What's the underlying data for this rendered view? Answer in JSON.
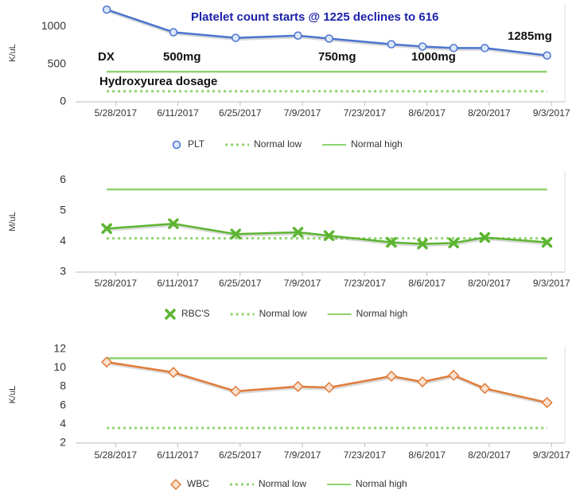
{
  "chart_data": [
    {
      "type": "line",
      "y_label": "K/uL",
      "x": [
        "2017-05-26",
        "2017-06-10",
        "2017-06-24",
        "2017-07-08",
        "2017-07-15",
        "2017-07-29",
        "2017-08-05",
        "2017-08-12",
        "2017-08-19",
        "2017-09-02"
      ],
      "xlim": [
        "2017-05-19",
        "2017-09-06"
      ],
      "xticks": [
        {
          "value": "2017-05-28",
          "label": "5/28/2017"
        },
        {
          "value": "2017-06-11",
          "label": "6/11/2017"
        },
        {
          "value": "2017-06-25",
          "label": "6/25/2017"
        },
        {
          "value": "2017-07-09",
          "label": "7/9/2017"
        },
        {
          "value": "2017-07-23",
          "label": "7/23/2017"
        },
        {
          "value": "2017-08-06",
          "label": "8/6/2017"
        },
        {
          "value": "2017-08-20",
          "label": "8/20/2017"
        },
        {
          "value": "2017-09-03",
          "label": "9/3/2017"
        }
      ],
      "ylim": [
        0,
        1300
      ],
      "yticks": [
        0,
        500,
        1000
      ],
      "series": [
        {
          "name": "PLT",
          "color": "#4a74cf",
          "marker": "circle",
          "values": [
            1225,
            925,
            850,
            880,
            840,
            765,
            735,
            715,
            715,
            616
          ]
        },
        {
          "name": "Normal low",
          "color": "#8ed36f",
          "style": "dotted",
          "values": [
            140,
            140,
            140,
            140,
            140,
            140,
            140,
            140,
            140,
            140
          ]
        },
        {
          "name": "Normal high",
          "color": "#8ed36f",
          "style": "solid",
          "values": [
            400,
            400,
            400,
            400,
            400,
            400,
            400,
            400,
            400,
            400
          ]
        }
      ],
      "annotations": [
        "Platelet count starts @ 1225 declines to 616",
        "DX",
        "500mg",
        "750mg",
        "1000mg",
        "1285mg",
        "Hydroxyurea dosage"
      ]
    },
    {
      "type": "line",
      "y_label": "M/uL",
      "x": [
        "2017-05-26",
        "2017-06-10",
        "2017-06-24",
        "2017-07-08",
        "2017-07-15",
        "2017-07-29",
        "2017-08-05",
        "2017-08-12",
        "2017-08-19",
        "2017-09-02"
      ],
      "xlim": [
        "2017-05-19",
        "2017-09-06"
      ],
      "xticks": [
        {
          "value": "2017-05-28",
          "label": "5/28/2017"
        },
        {
          "value": "2017-06-11",
          "label": "6/11/2017"
        },
        {
          "value": "2017-06-25",
          "label": "6/25/2017"
        },
        {
          "value": "2017-07-09",
          "label": "7/9/2017"
        },
        {
          "value": "2017-07-23",
          "label": "7/23/2017"
        },
        {
          "value": "2017-08-06",
          "label": "8/6/2017"
        },
        {
          "value": "2017-08-20",
          "label": "8/20/2017"
        },
        {
          "value": "2017-09-03",
          "label": "9/3/2017"
        }
      ],
      "ylim": [
        3,
        6.3
      ],
      "yticks": [
        3,
        4,
        5,
        6
      ],
      "series": [
        {
          "name": "RBC'S",
          "color": "#5cb531",
          "marker": "x",
          "values": [
            4.42,
            4.58,
            4.24,
            4.3,
            4.19,
            3.97,
            3.92,
            3.95,
            4.13,
            3.97
          ]
        },
        {
          "name": "Normal low",
          "color": "#8ed36f",
          "style": "dotted",
          "values": [
            4.1,
            4.1,
            4.1,
            4.1,
            4.1,
            4.1,
            4.1,
            4.1,
            4.1,
            4.1
          ]
        },
        {
          "name": "Normal high",
          "color": "#8ed36f",
          "style": "solid",
          "values": [
            5.7,
            5.7,
            5.7,
            5.7,
            5.7,
            5.7,
            5.7,
            5.7,
            5.7,
            5.7
          ]
        }
      ]
    },
    {
      "type": "line",
      "y_label": "K/uL",
      "x": [
        "2017-05-26",
        "2017-06-10",
        "2017-06-24",
        "2017-07-08",
        "2017-07-15",
        "2017-07-29",
        "2017-08-05",
        "2017-08-12",
        "2017-08-19",
        "2017-09-02"
      ],
      "xlim": [
        "2017-05-19",
        "2017-09-06"
      ],
      "xticks": [
        {
          "value": "2017-05-28",
          "label": "5/28/2017"
        },
        {
          "value": "2017-06-11",
          "label": "6/11/2017"
        },
        {
          "value": "2017-06-25",
          "label": "6/25/2017"
        },
        {
          "value": "2017-07-09",
          "label": "7/9/2017"
        },
        {
          "value": "2017-07-23",
          "label": "7/23/2017"
        },
        {
          "value": "2017-08-06",
          "label": "8/6/2017"
        },
        {
          "value": "2017-08-20",
          "label": "8/20/2017"
        },
        {
          "value": "2017-09-03",
          "label": "9/3/2017"
        }
      ],
      "ylim": [
        2,
        12.3
      ],
      "yticks": [
        2,
        4,
        6,
        8,
        10,
        12
      ],
      "series": [
        {
          "name": "WBC",
          "color": "#e07b39",
          "marker": "diamond",
          "values": [
            10.6,
            9.5,
            7.5,
            8.0,
            7.9,
            9.1,
            8.5,
            9.2,
            7.8,
            6.3
          ]
        },
        {
          "name": "Normal low",
          "color": "#8ed36f",
          "style": "dotted",
          "values": [
            3.6,
            3.6,
            3.6,
            3.6,
            3.6,
            3.6,
            3.6,
            3.6,
            3.6,
            3.6
          ]
        },
        {
          "name": "Normal high",
          "color": "#8ed36f",
          "style": "solid",
          "values": [
            11,
            11,
            11,
            11,
            11,
            11,
            11,
            11,
            11,
            11
          ]
        }
      ]
    }
  ]
}
